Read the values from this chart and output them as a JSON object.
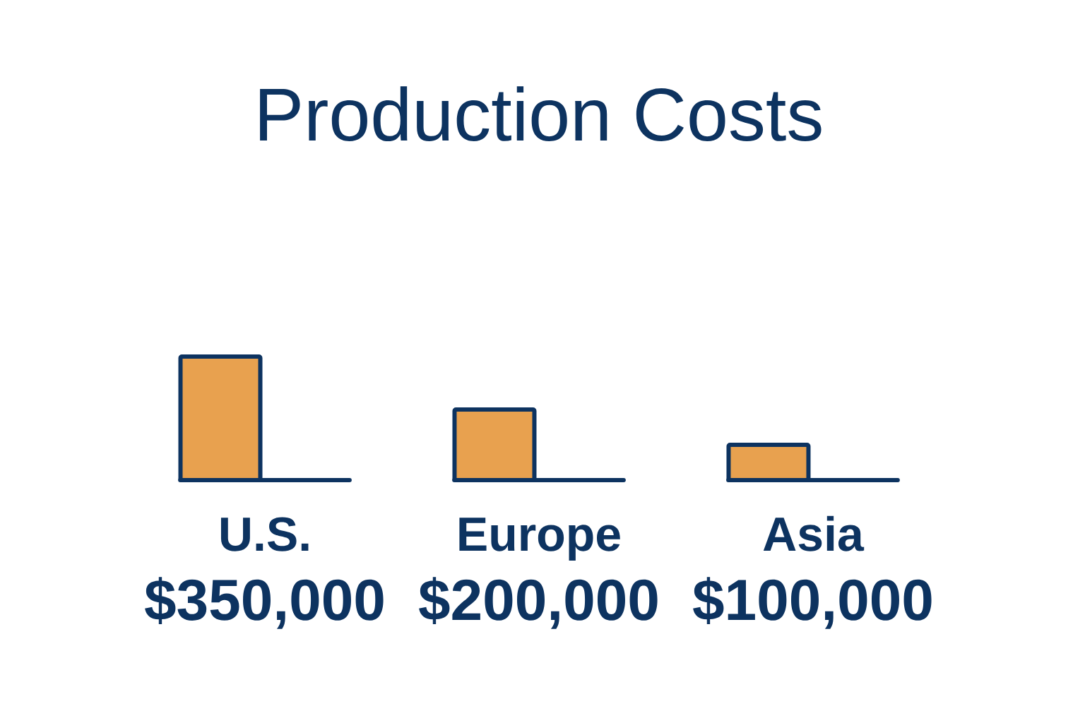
{
  "chart_data": {
    "type": "bar",
    "title": "Production Costs",
    "categories": [
      "U.S.",
      "Europe",
      "Asia"
    ],
    "values": [
      350000,
      200000,
      100000
    ],
    "value_labels": [
      "$350,000",
      "$200,000",
      "$100,000"
    ],
    "color": "#e8a14f"
  }
}
